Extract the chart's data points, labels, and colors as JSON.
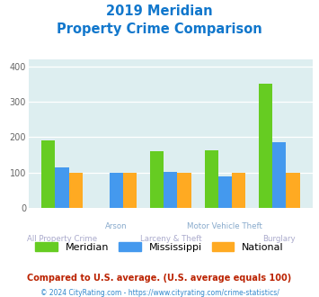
{
  "title_line1": "2019 Meridian",
  "title_line2": "Property Crime Comparison",
  "groups": [
    "All Property Crime",
    "Arson",
    "Larceny & Theft",
    "Motor Vehicle Theft",
    "Burglary"
  ],
  "meridian": [
    190,
    0,
    160,
    162,
    352
  ],
  "mississippi": [
    115,
    100,
    102,
    90,
    185
  ],
  "national": [
    100,
    100,
    100,
    100,
    100
  ],
  "colors": {
    "meridian": "#66cc22",
    "mississippi": "#4499ee",
    "national": "#ffaa22"
  },
  "ylim": [
    0,
    420
  ],
  "yticks": [
    0,
    100,
    200,
    300,
    400
  ],
  "plot_bg": "#ddeef0",
  "title_color": "#1177cc",
  "label_color_bottom": "#aaaacc",
  "label_color_top": "#88aacc",
  "footnote1": "Compared to U.S. average. (U.S. average equals 100)",
  "footnote2": "© 2024 CityRating.com - https://www.cityrating.com/crime-statistics/",
  "footnote1_color": "#bb2200",
  "footnote2_color": "#3388cc"
}
